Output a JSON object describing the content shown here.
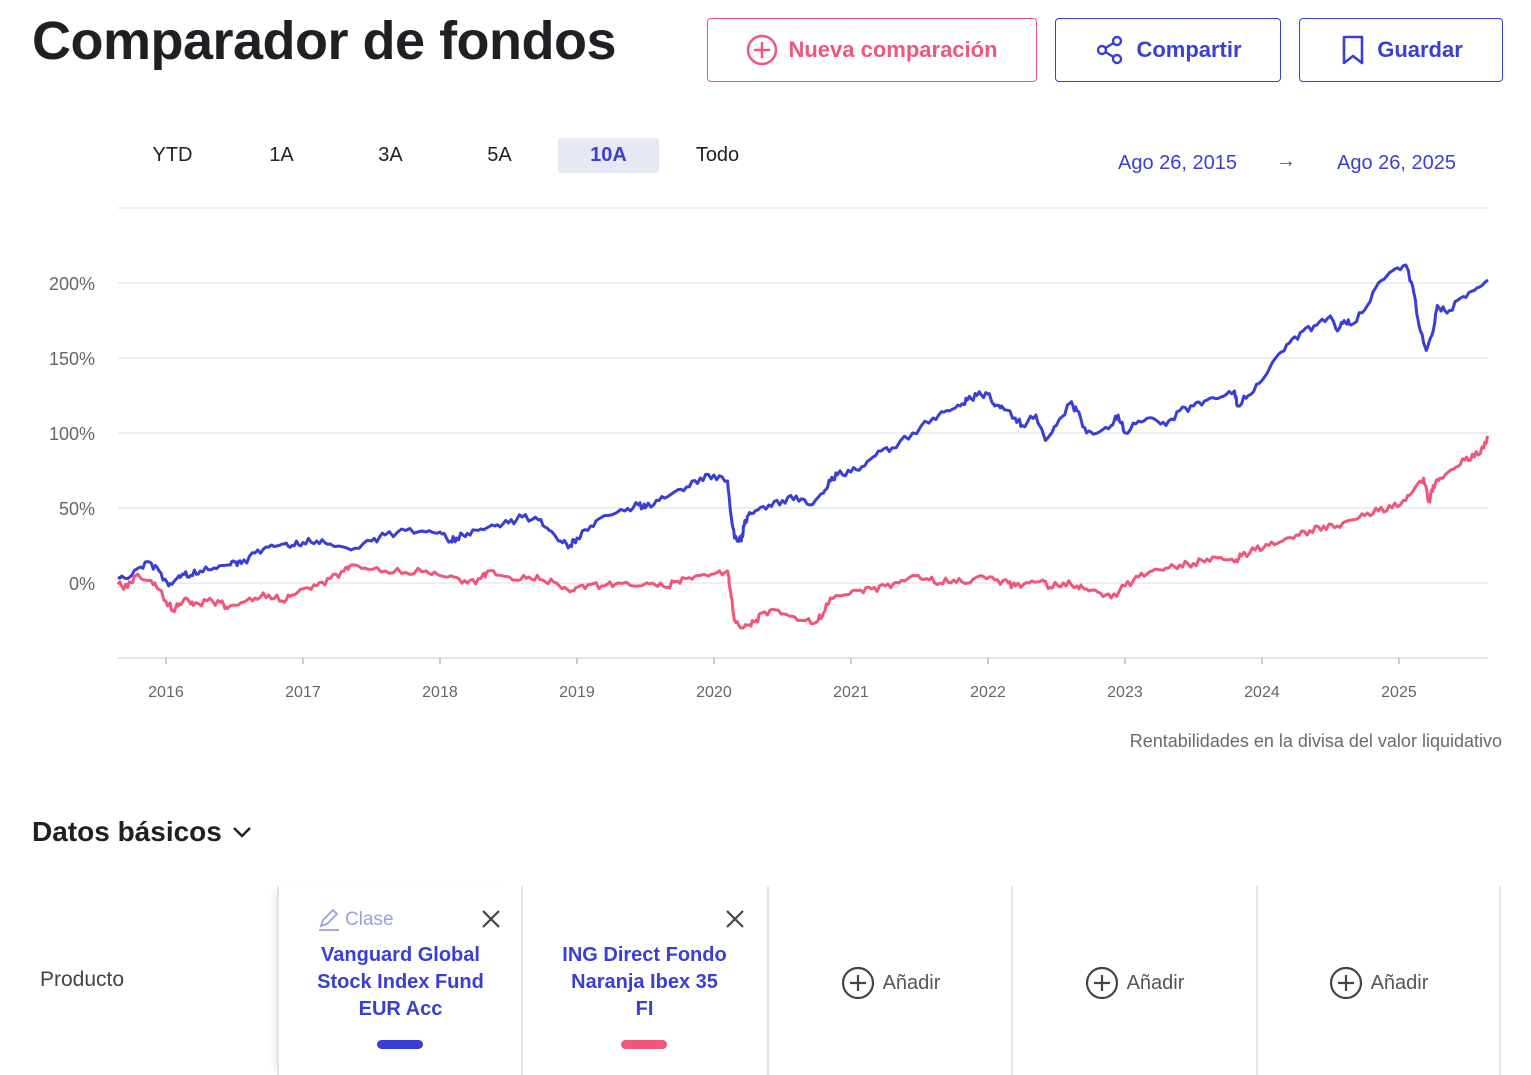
{
  "header": {
    "title": "Comparador de fondos",
    "new_label": "Nueva comparación",
    "share_label": "Compartir",
    "save_label": "Guardar"
  },
  "colors": {
    "blue": "#3a3fd3",
    "red": "#f0567a"
  },
  "ranges": [
    "YTD",
    "1A",
    "3A",
    "5A",
    "10A",
    "Todo"
  ],
  "active_range": "10A",
  "date_range": {
    "from": "Ago 26, 2015",
    "arrow": "→",
    "to": "Ago 26, 2025"
  },
  "chart_data": {
    "type": "line",
    "y_ticks": [
      "0%",
      "50%",
      "100%",
      "150%",
      "200%"
    ],
    "x_ticks": [
      "2016",
      "2017",
      "2018",
      "2019",
      "2020",
      "2021",
      "2022",
      "2023",
      "2024",
      "2025"
    ],
    "ylim": [
      -50,
      250
    ],
    "xlim": [
      2015.65,
      2025.65
    ],
    "grid": true,
    "series": [
      {
        "color": "#3a3fd3",
        "x": [
          2015.65,
          2015.72,
          2015.8,
          2015.88,
          2015.95,
          2016.02,
          2016.08,
          2016.12,
          2016.18,
          2016.25,
          2016.35,
          2016.45,
          2016.5,
          2016.55,
          2016.65,
          2016.75,
          2016.85,
          2016.92,
          2017.0,
          2017.1,
          2017.2,
          2017.35,
          2017.5,
          2017.6,
          2017.75,
          2017.9,
          2018.0,
          2018.08,
          2018.12,
          2018.2,
          2018.3,
          2018.4,
          2018.5,
          2018.6,
          2018.72,
          2018.8,
          2018.88,
          2018.95,
          2019.0,
          2019.1,
          2019.2,
          2019.35,
          2019.45,
          2019.5,
          2019.6,
          2019.7,
          2019.8,
          2019.9,
          2020.0,
          2020.1,
          2020.12,
          2020.15,
          2020.2,
          2020.22,
          2020.25,
          2020.3,
          2020.4,
          2020.5,
          2020.6,
          2020.7,
          2020.8,
          2020.85,
          2020.9,
          2021.0,
          2021.1,
          2021.2,
          2021.3,
          2021.45,
          2021.6,
          2021.7,
          2021.8,
          2021.85,
          2021.92,
          2022.0,
          2022.05,
          2022.1,
          2022.2,
          2022.25,
          2022.35,
          2022.42,
          2022.5,
          2022.6,
          2022.65,
          2022.72,
          2022.8,
          2022.9,
          2022.95,
          2023.0,
          2023.1,
          2023.2,
          2023.3,
          2023.4,
          2023.5,
          2023.6,
          2023.7,
          2023.8,
          2023.82,
          2023.9,
          2024.0,
          2024.1,
          2024.2,
          2024.3,
          2024.4,
          2024.5,
          2024.55,
          2024.6,
          2024.65,
          2024.75,
          2024.85,
          2024.95,
          2025.05,
          2025.1,
          2025.15,
          2025.2,
          2025.25,
          2025.28,
          2025.35,
          2025.45,
          2025.55,
          2025.65
        ],
        "values": [
          4,
          3,
          10,
          14,
          8,
          -2,
          3,
          6,
          5,
          8,
          10,
          12,
          14,
          13,
          20,
          24,
          26,
          25,
          27,
          28,
          26,
          22,
          28,
          32,
          35,
          34,
          34,
          28,
          30,
          33,
          36,
          38,
          40,
          44,
          42,
          35,
          28,
          25,
          30,
          38,
          45,
          48,
          52,
          50,
          55,
          60,
          64,
          70,
          72,
          68,
          48,
          30,
          28,
          38,
          45,
          48,
          52,
          55,
          58,
          52,
          60,
          68,
          72,
          74,
          78,
          88,
          90,
          100,
          110,
          115,
          118,
          122,
          125,
          126,
          118,
          118,
          110,
          105,
          112,
          95,
          105,
          120,
          115,
          100,
          100,
          105,
          112,
          100,
          108,
          110,
          105,
          115,
          118,
          122,
          124,
          128,
          118,
          125,
          135,
          150,
          160,
          168,
          172,
          178,
          168,
          175,
          172,
          182,
          200,
          208,
          212,
          198,
          170,
          155,
          168,
          185,
          180,
          190,
          195,
          202
        ]
      },
      {
        "color": "#f0567a",
        "x": [
          2015.65,
          2015.72,
          2015.78,
          2015.85,
          2015.92,
          2016.0,
          2016.05,
          2016.1,
          2016.15,
          2016.2,
          2016.3,
          2016.4,
          2016.45,
          2016.55,
          2016.65,
          2016.75,
          2016.85,
          2016.92,
          2017.0,
          2017.1,
          2017.2,
          2017.3,
          2017.35,
          2017.45,
          2017.6,
          2017.75,
          2017.9,
          2018.0,
          2018.1,
          2018.2,
          2018.3,
          2018.35,
          2018.45,
          2018.55,
          2018.65,
          2018.75,
          2018.85,
          2018.95,
          2019.0,
          2019.1,
          2019.2,
          2019.3,
          2019.45,
          2019.55,
          2019.65,
          2019.72,
          2019.8,
          2019.9,
          2020.0,
          2020.1,
          2020.12,
          2020.15,
          2020.2,
          2020.25,
          2020.3,
          2020.35,
          2020.45,
          2020.55,
          2020.65,
          2020.75,
          2020.8,
          2020.85,
          2020.95,
          2021.05,
          2021.15,
          2021.25,
          2021.35,
          2021.45,
          2021.55,
          2021.65,
          2021.75,
          2021.85,
          2021.95,
          2022.05,
          2022.15,
          2022.2,
          2022.3,
          2022.4,
          2022.45,
          2022.55,
          2022.65,
          2022.72,
          2022.8,
          2022.9,
          2023.0,
          2023.1,
          2023.2,
          2023.3,
          2023.4,
          2023.5,
          2023.6,
          2023.7,
          2023.8,
          2023.85,
          2023.95,
          2024.05,
          2024.15,
          2024.25,
          2024.35,
          2024.45,
          2024.55,
          2024.65,
          2024.75,
          2024.85,
          2024.95,
          2025.05,
          2025.12,
          2025.18,
          2025.22,
          2025.25,
          2025.3,
          2025.4,
          2025.48,
          2025.55,
          2025.62,
          2025.65
        ],
        "values": [
          -1,
          -3,
          5,
          2,
          0,
          -12,
          -18,
          -14,
          -10,
          -15,
          -12,
          -13,
          -17,
          -13,
          -10,
          -8,
          -12,
          -8,
          -4,
          -2,
          3,
          8,
          12,
          10,
          8,
          7,
          8,
          5,
          4,
          0,
          3,
          8,
          5,
          2,
          4,
          2,
          0,
          -6,
          -3,
          -1,
          -2,
          0,
          -2,
          0,
          -3,
          1,
          3,
          5,
          6,
          8,
          -5,
          -25,
          -30,
          -28,
          -26,
          -20,
          -18,
          -22,
          -25,
          -26,
          -20,
          -10,
          -8,
          -5,
          -4,
          -2,
          0,
          5,
          3,
          0,
          2,
          0,
          5,
          2,
          0,
          -2,
          0,
          2,
          -3,
          0,
          -2,
          -4,
          -6,
          -10,
          -2,
          4,
          8,
          10,
          12,
          13,
          16,
          17,
          14,
          18,
          22,
          25,
          28,
          32,
          35,
          38,
          38,
          42,
          45,
          48,
          50,
          55,
          64,
          70,
          54,
          65,
          70,
          76,
          82,
          84,
          90,
          98
        ]
      }
    ]
  },
  "chart_note": "Rentabilidades en la divisa del valor liquidativo",
  "basic_data": {
    "title": "Datos básicos",
    "row_label": "Producto",
    "clase_label": "Clase",
    "funds": [
      {
        "name_line1": "Vanguard Global",
        "name_line2": "Stock Index Fund",
        "name_line3": "EUR Acc",
        "color": "#3a3fd3"
      },
      {
        "name_line1": "ING Direct Fondo",
        "name_line2": "Naranja Ibex 35",
        "name_line3": "FI",
        "color": "#f0567a"
      }
    ],
    "add_label": "Añadir"
  }
}
